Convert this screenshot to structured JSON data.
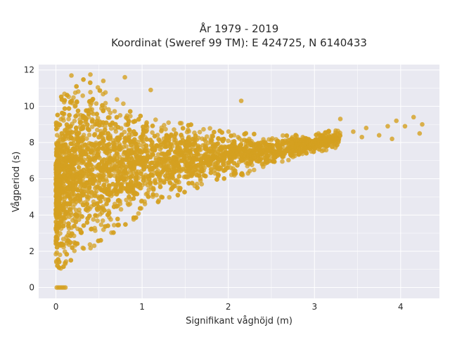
{
  "chart_data": {
    "type": "scatter",
    "title": "År 1979 - 2019",
    "subtitle": "Koordinat (Sweref 99 TM): E 424725, N 6140433",
    "xlabel": "Signifikant våghöjd (m)",
    "ylabel": "Vågperiod (s)",
    "xlim": [
      -0.2,
      4.45
    ],
    "ylim": [
      -0.6,
      12.3
    ],
    "x_ticks": [
      0,
      1,
      2,
      3,
      4
    ],
    "y_ticks": [
      0,
      2,
      4,
      6,
      8,
      10,
      12
    ],
    "grid": true,
    "legend": "none",
    "marker_color": "#d4a020",
    "background_color": "#e9e9f1",
    "density_envelope": [
      {
        "x": 0.0,
        "lo": 1.0,
        "hi": 9.0
      },
      {
        "x": 0.05,
        "lo": 1.0,
        "hi": 10.5
      },
      {
        "x": 0.15,
        "lo": 1.3,
        "hi": 11.4
      },
      {
        "x": 0.3,
        "lo": 1.8,
        "hi": 11.6
      },
      {
        "x": 0.5,
        "lo": 2.4,
        "hi": 11.2
      },
      {
        "x": 0.7,
        "lo": 3.0,
        "hi": 10.4
      },
      {
        "x": 0.9,
        "lo": 3.7,
        "hi": 10.0
      },
      {
        "x": 1.1,
        "lo": 4.3,
        "hi": 9.7
      },
      {
        "x": 1.3,
        "lo": 4.8,
        "hi": 9.4
      },
      {
        "x": 1.5,
        "lo": 5.2,
        "hi": 9.1
      },
      {
        "x": 1.7,
        "lo": 5.5,
        "hi": 8.9
      },
      {
        "x": 1.9,
        "lo": 5.8,
        "hi": 8.7
      },
      {
        "x": 2.1,
        "lo": 6.1,
        "hi": 8.6
      },
      {
        "x": 2.3,
        "lo": 6.4,
        "hi": 8.5
      },
      {
        "x": 2.5,
        "lo": 6.7,
        "hi": 8.5
      },
      {
        "x": 2.7,
        "lo": 7.0,
        "hi": 8.4
      },
      {
        "x": 2.9,
        "lo": 7.3,
        "hi": 8.5
      },
      {
        "x": 3.1,
        "lo": 7.5,
        "hi": 8.6
      },
      {
        "x": 3.3,
        "lo": 7.8,
        "hi": 8.7
      }
    ],
    "zero_points": [
      {
        "x": 0.01,
        "y": 0.0
      },
      {
        "x": 0.03,
        "y": 0.0
      },
      {
        "x": 0.05,
        "y": 0.0
      },
      {
        "x": 0.07,
        "y": 0.0
      },
      {
        "x": 0.09,
        "y": 0.0
      },
      {
        "x": 0.11,
        "y": 0.0
      }
    ],
    "outlier_points": [
      {
        "x": 0.18,
        "y": 11.7
      },
      {
        "x": 0.4,
        "y": 11.75
      },
      {
        "x": 0.55,
        "y": 11.4
      },
      {
        "x": 0.8,
        "y": 11.6
      },
      {
        "x": 1.1,
        "y": 10.9
      },
      {
        "x": 2.15,
        "y": 10.3
      },
      {
        "x": 3.3,
        "y": 9.3
      },
      {
        "x": 3.6,
        "y": 8.8
      },
      {
        "x": 3.75,
        "y": 8.4
      },
      {
        "x": 3.85,
        "y": 8.9
      },
      {
        "x": 3.95,
        "y": 9.2
      },
      {
        "x": 4.05,
        "y": 8.9
      },
      {
        "x": 4.15,
        "y": 9.4
      },
      {
        "x": 4.25,
        "y": 9.0
      },
      {
        "x": 4.22,
        "y": 8.5
      },
      {
        "x": 3.9,
        "y": 8.2
      },
      {
        "x": 3.55,
        "y": 8.3
      },
      {
        "x": 3.45,
        "y": 8.6
      }
    ]
  }
}
